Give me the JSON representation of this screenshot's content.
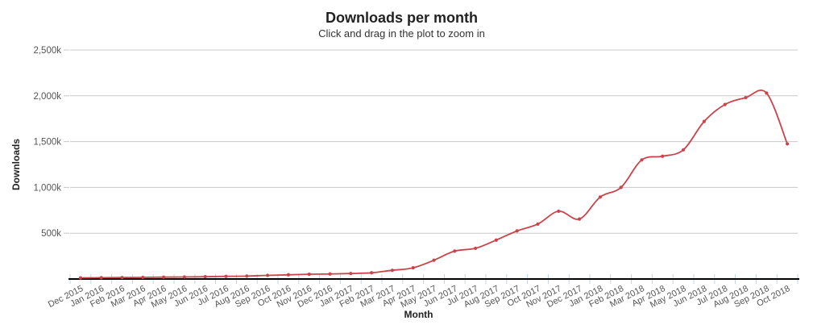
{
  "chart_data": {
    "type": "line",
    "curve": "spline",
    "marker": "circle",
    "title": "Downloads per month",
    "subtitle": "Click and drag in the plot to zoom in",
    "xlabel": "Month",
    "ylabel": "Downloads",
    "ylim_k": [
      0,
      2500
    ],
    "yticks_k": [
      500,
      1000,
      1500,
      2000,
      2500
    ],
    "ytick_labels": [
      "500k",
      "1,000k",
      "1,500k",
      "2,000k",
      "2,500k"
    ],
    "grid": "horizontal",
    "legend": "none",
    "categories": [
      "Dec 2015",
      "Jan 2016",
      "Feb 2016",
      "Mar 2016",
      "Apr 2016",
      "May 2016",
      "Jun 2016",
      "Jul 2016",
      "Aug 2016",
      "Sep 2016",
      "Oct 2016",
      "Nov 2016",
      "Dec 2016",
      "Jan 2017",
      "Feb 2017",
      "Mar 2017",
      "Apr 2017",
      "May 2017",
      "Jun 2017",
      "Jul 2017",
      "Aug 2017",
      "Sep 2017",
      "Oct 2017",
      "Nov 2017",
      "Dec 2017",
      "Jan 2018",
      "Feb 2018",
      "Mar 2018",
      "Apr 2018",
      "May 2018",
      "Jun 2018",
      "Jul 2018",
      "Aug 2018",
      "Sep 2018",
      "Oct 2018"
    ],
    "series": [
      {
        "name": "Downloads",
        "values_k": [
          12,
          14,
          16,
          18,
          20,
          22,
          25,
          29,
          32,
          40,
          46,
          52,
          55,
          60,
          68,
          95,
          122,
          205,
          305,
          335,
          425,
          525,
          600,
          740,
          655,
          895,
          1000,
          1300,
          1340,
          1410,
          1720,
          1905,
          1980,
          2030,
          1475
        ]
      }
    ],
    "colors": {
      "line": "#c9454b",
      "marker": "#c9454b",
      "grid": "#c8c8c8",
      "axis_line": "#000000",
      "tick": "#c3d2de",
      "axis_label": "#555555",
      "title_text": "#222222"
    }
  }
}
